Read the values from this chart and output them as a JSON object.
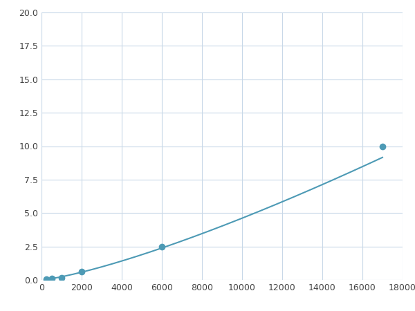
{
  "x": [
    250,
    500,
    1000,
    2000,
    6000,
    17000
  ],
  "y": [
    0.05,
    0.1,
    0.15,
    0.6,
    2.5,
    10.0
  ],
  "line_color": "#4d9ab5",
  "marker_color": "#4d9ab5",
  "marker_size": 6,
  "xlim": [
    0,
    18000
  ],
  "ylim": [
    0,
    20
  ],
  "xticks": [
    0,
    2000,
    4000,
    6000,
    8000,
    10000,
    12000,
    14000,
    16000,
    18000
  ],
  "yticks": [
    0.0,
    2.5,
    5.0,
    7.5,
    10.0,
    12.5,
    15.0,
    17.5,
    20.0
  ],
  "grid_color": "#c8d8e8",
  "background_color": "#ffffff",
  "figsize": [
    6.0,
    4.5
  ],
  "dpi": 100
}
